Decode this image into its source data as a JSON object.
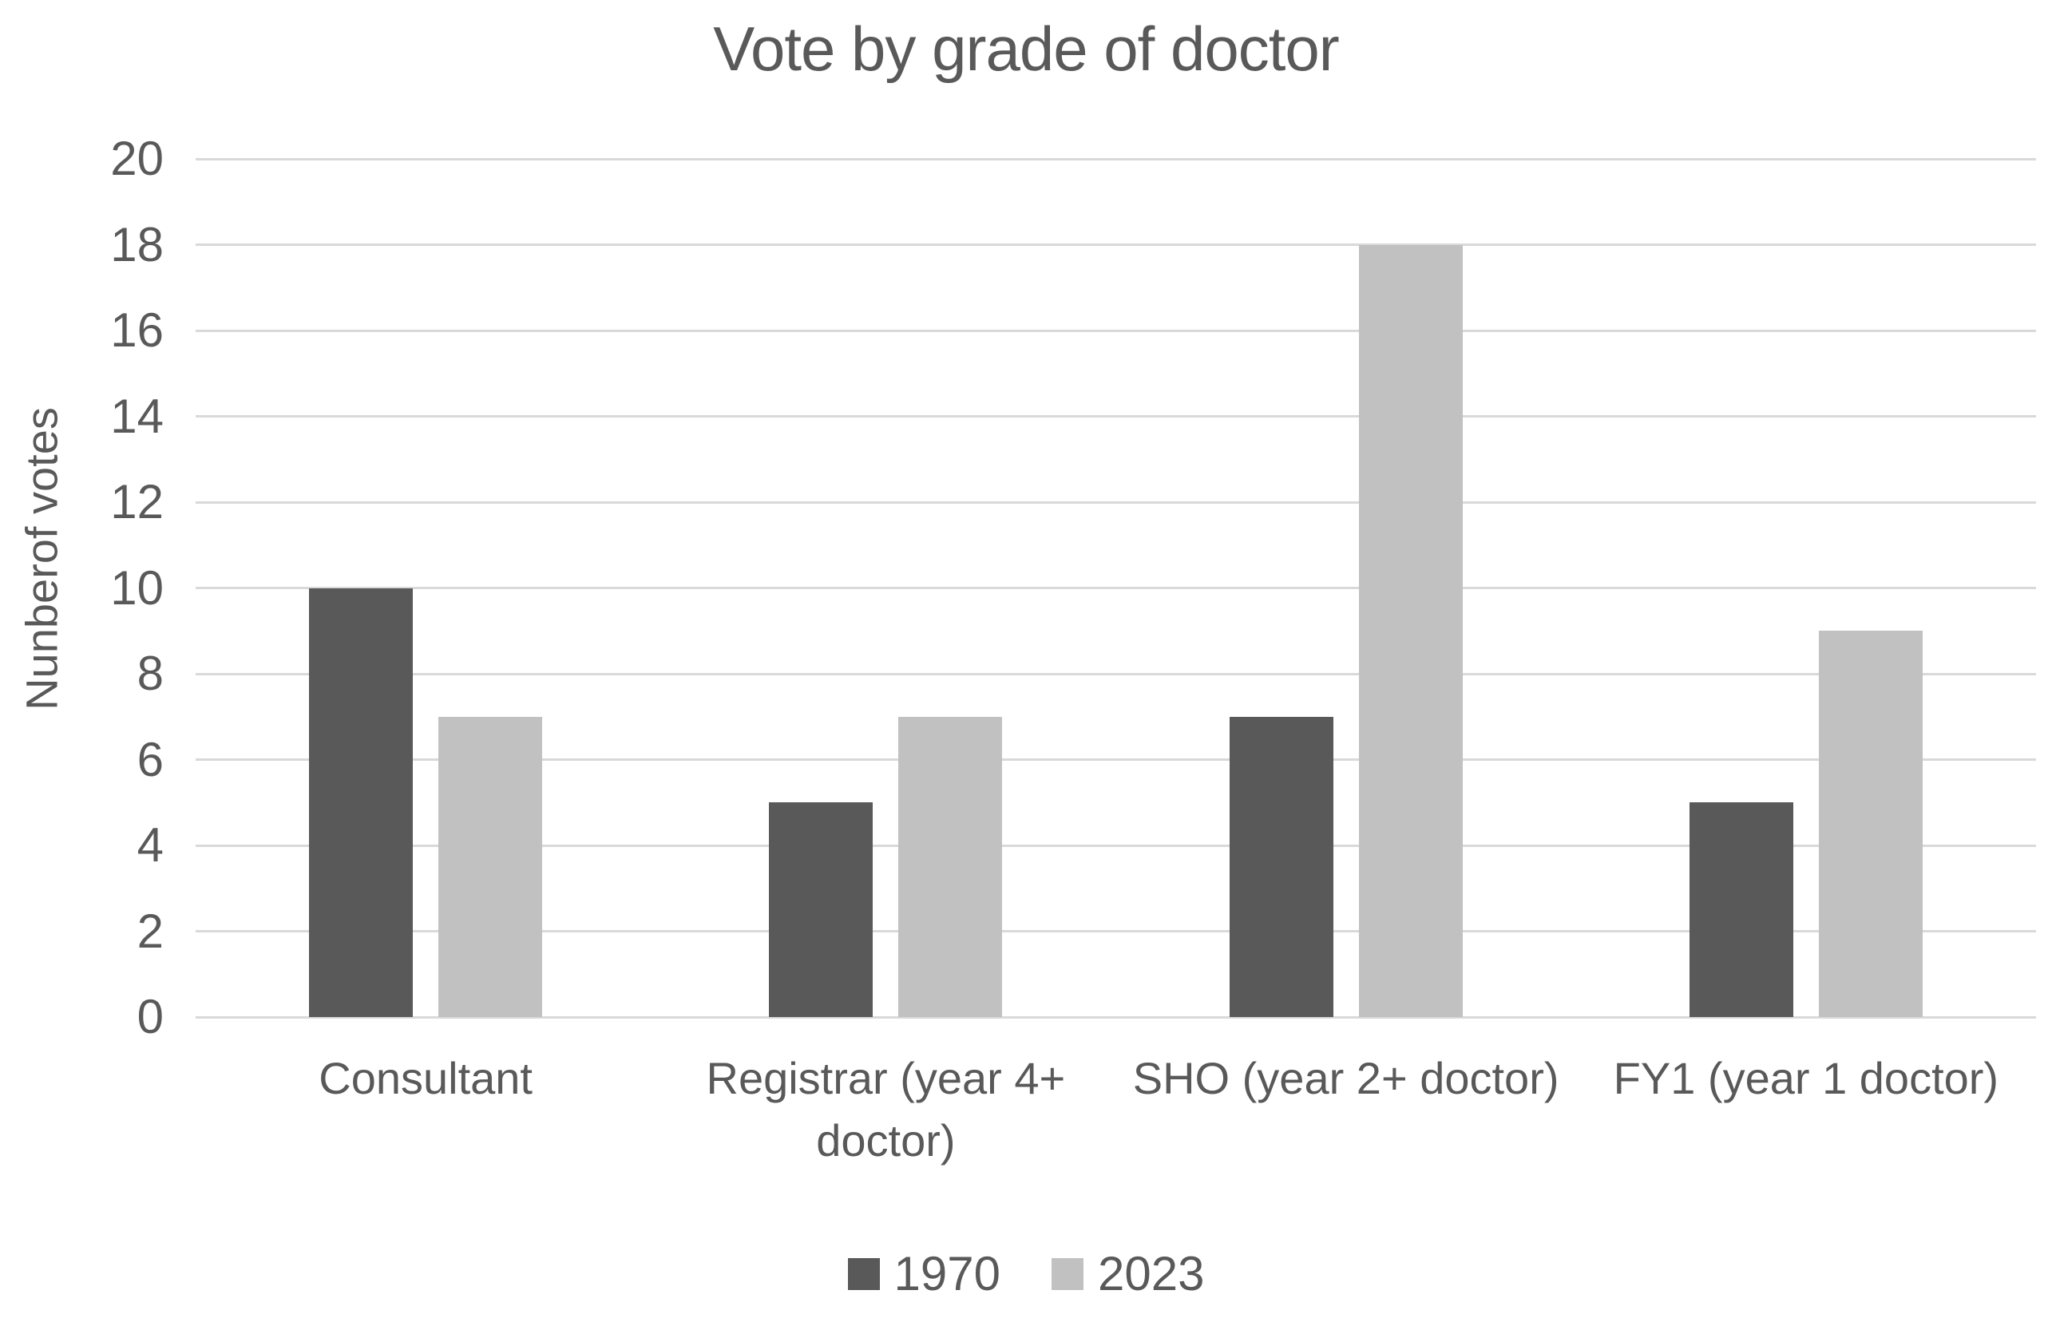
{
  "chart_data": {
    "type": "bar",
    "title": "Vote by grade of doctor",
    "xlabel": "",
    "ylabel": "Nunberof votes",
    "categories": [
      "Consultant",
      "Registrar (year 4+ doctor)",
      "SHO (year 2+ doctor)",
      "FY1 (year 1 doctor)"
    ],
    "series": [
      {
        "name": "1970",
        "color": "#595959",
        "values": [
          10,
          5,
          7,
          5
        ]
      },
      {
        "name": "2023",
        "color": "#c1c1c1",
        "values": [
          7,
          7,
          18,
          9
        ]
      }
    ],
    "ylim": [
      0,
      20
    ],
    "yticks": [
      0,
      2,
      4,
      6,
      8,
      10,
      12,
      14,
      16,
      18,
      20
    ],
    "grid": "horizontal",
    "legend_position": "bottom",
    "colors": {
      "gridline": "#d9d9d9",
      "text": "#595959",
      "background": "#ffffff"
    }
  }
}
